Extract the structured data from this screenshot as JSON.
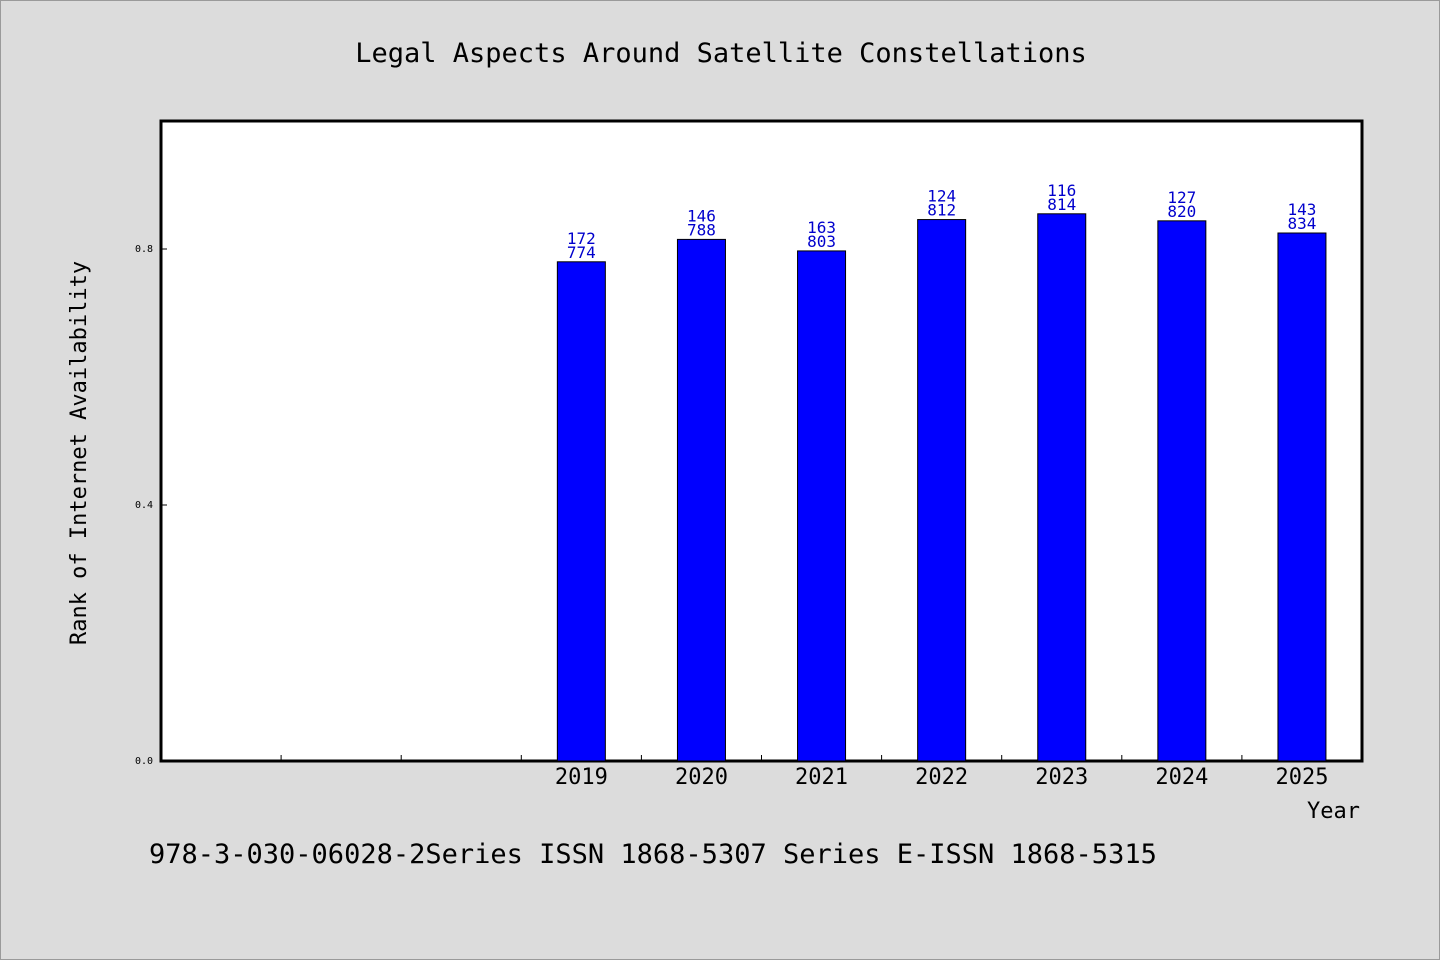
{
  "chart_data": {
    "type": "bar",
    "title": "Legal Aspects Around Satellite Constellations",
    "xlabel": "Year",
    "ylabel": "Rank of Internet Availability",
    "categories": [
      "",
      "",
      "",
      "2019",
      "2020",
      "2021",
      "2022",
      "2023",
      "2024",
      "2025"
    ],
    "values": [
      null,
      null,
      null,
      0.774,
      0.788,
      0.803,
      0.812,
      0.814,
      0.82,
      0.834
    ],
    "bar_heights": [
      null,
      null,
      null,
      0.78,
      0.815,
      0.797,
      0.846,
      0.855,
      0.844,
      0.825
    ],
    "data_labels": [
      null,
      null,
      null,
      [
        "172",
        "774"
      ],
      [
        "146",
        "788"
      ],
      [
        "163",
        "803"
      ],
      [
        "124",
        "812"
      ],
      [
        "116",
        "814"
      ],
      [
        "127",
        "820"
      ],
      [
        "143",
        "834"
      ]
    ],
    "ylim": [
      0.0,
      1.0
    ],
    "yticks": [
      0.0,
      0.4,
      0.8
    ],
    "ytick_labels": [
      "0.0",
      "0.4",
      "0.8"
    ],
    "grid": false,
    "bar_color": "#0000ff",
    "label_color": "#0000cc"
  },
  "footnote": "978-3-030-06028-2Series ISSN 1868-5307 Series E-ISSN 1868-5315"
}
